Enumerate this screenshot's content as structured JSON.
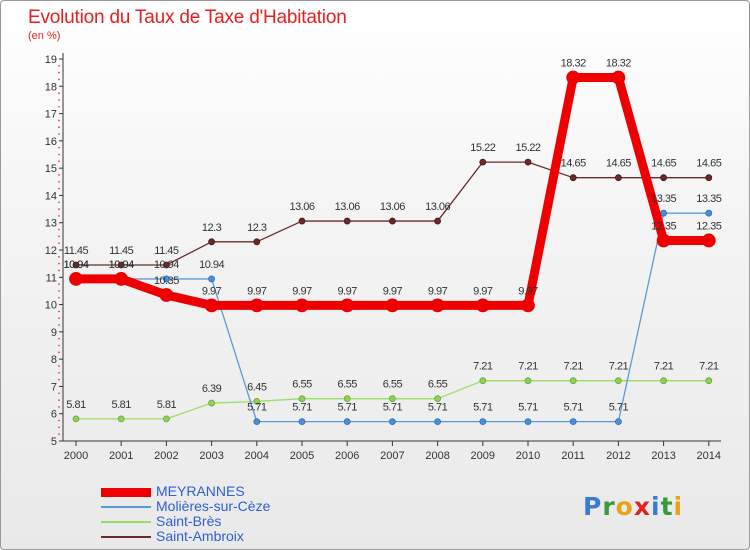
{
  "header": {
    "title": "Evolution du Taux de Taxe d'Habitation",
    "unit": "(en %)"
  },
  "chart_data": {
    "type": "line",
    "title": "Evolution du Taux de Taxe d'Habitation",
    "ylabel": "(en %)",
    "xlabel": "",
    "x": [
      2000,
      2001,
      2002,
      2003,
      2004,
      2005,
      2006,
      2007,
      2008,
      2009,
      2010,
      2011,
      2012,
      2013,
      2014
    ],
    "ylim": [
      5,
      19
    ],
    "yticks": [
      5,
      6,
      7,
      8,
      9,
      10,
      11,
      12,
      13,
      14,
      15,
      16,
      17,
      18,
      19
    ],
    "grid": false,
    "legend_position": "bottom-left",
    "series": [
      {
        "name": "MEYRANNES",
        "color": "#ee0000",
        "values": [
          10.94,
          10.94,
          10.35,
          9.97,
          9.97,
          9.97,
          9.97,
          9.97,
          9.97,
          9.97,
          9.97,
          18.32,
          18.32,
          12.35,
          12.35
        ]
      },
      {
        "name": "Molières-sur-Cèze",
        "color": "#5b9bd5",
        "values": [
          10.94,
          10.94,
          10.94,
          10.94,
          5.71,
          5.71,
          5.71,
          5.71,
          5.71,
          5.71,
          5.71,
          5.71,
          5.71,
          13.35,
          13.35
        ]
      },
      {
        "name": "Saint-Brès",
        "color": "#99dd66",
        "values": [
          5.81,
          5.81,
          5.81,
          6.39,
          6.45,
          6.55,
          6.55,
          6.55,
          6.55,
          7.21,
          7.21,
          7.21,
          7.21,
          7.21,
          7.21
        ]
      },
      {
        "name": "Saint-Ambroix",
        "color": "#6b2a2a",
        "values": [
          11.45,
          11.45,
          11.45,
          12.3,
          12.3,
          13.06,
          13.06,
          13.06,
          13.06,
          15.22,
          15.22,
          14.65,
          14.65,
          14.65,
          14.65
        ]
      }
    ],
    "data_labels": [
      [
        "10.94",
        "10.94",
        "10.35",
        "9.97",
        "9.97",
        "9.97",
        "9.97",
        "9.97",
        "9.97",
        "9.97",
        "9.97",
        "18.32",
        "18.32",
        "12.35",
        "12.35"
      ],
      [
        "10.94",
        "10.94",
        "10.94",
        "10.94",
        "5.71",
        "5.71",
        "5.71",
        "5.71",
        "5.71",
        "5.71",
        "5.71",
        "5.71",
        "5.71",
        "13.35",
        "13.35"
      ],
      [
        "5.81",
        "5.81",
        "5.81",
        "6.39",
        "6.45",
        "6.55",
        "6.55",
        "6.55",
        "6.55",
        "7.21",
        "7.21",
        "7.21",
        "7.21",
        "7.21",
        "7.21"
      ],
      [
        "11.45",
        "11.45",
        "11.45",
        "12.3",
        "12.3",
        "13.06",
        "13.06",
        "13.06",
        "13.06",
        "15.22",
        "15.22",
        "14.65",
        "14.65",
        "14.65",
        "14.65"
      ]
    ]
  },
  "logo": {
    "letters": [
      "P",
      "r",
      "o",
      "x",
      "i",
      "t",
      "i"
    ],
    "colors": [
      "#3a7bd5",
      "#3a9a3a",
      "#e6a21a",
      "#e62020",
      "#3a7bd5",
      "#3a9a3a",
      "#e6a21a"
    ]
  }
}
